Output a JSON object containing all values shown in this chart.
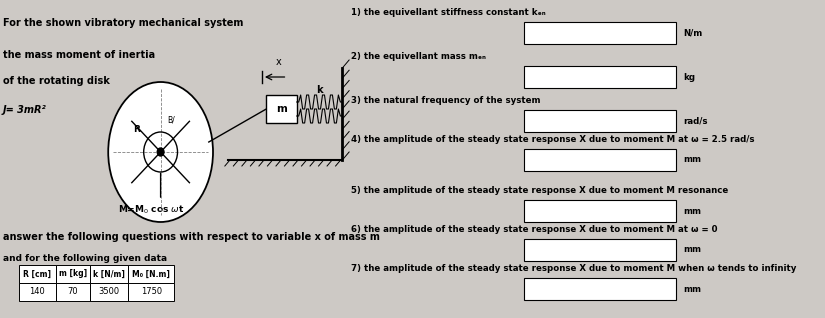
{
  "bg_color": "#cdc9c5",
  "left_panel": {
    "line1": "For the shown vibratory mechanical system",
    "line2": "the mass moment of inertia",
    "line3": "of the rotating disk",
    "line4": "J= 3mR²",
    "prefix_text": "answer the following questions with respect to variable x of mass m",
    "data_label": "and for the following given data",
    "table_headers": [
      "R [cm]",
      "m [kg]",
      "k [N/m]",
      "M₀ [N.m]"
    ],
    "table_values": [
      "140",
      "70",
      "3500",
      "1750"
    ]
  },
  "right_panel": {
    "questions": [
      {
        "num": "1)",
        "text": "the equivellant stiffness constant kₑₙ",
        "unit": "N/m"
      },
      {
        "num": "2)",
        "text": "the equivellant mass mₑₙ",
        "unit": "kg"
      },
      {
        "num": "3)",
        "text": "the natural frequency of the system",
        "unit": "rad/s"
      },
      {
        "num": "4)",
        "text": "the amplitude of the steady state response X due to moment M at ω = 2.5 rad/s",
        "unit": "mm"
      },
      {
        "num": "5)",
        "text": "the amplitude of the steady state response X due to moment M resonance",
        "unit": "mm"
      },
      {
        "num": "6)",
        "text": "the amplitude of the steady state response X due to moment M at ω = 0",
        "unit": "mm"
      },
      {
        "num": "7)",
        "text": "the amplitude of the steady state response X due to moment M when ω tends to infinity",
        "unit": "mm"
      }
    ]
  }
}
